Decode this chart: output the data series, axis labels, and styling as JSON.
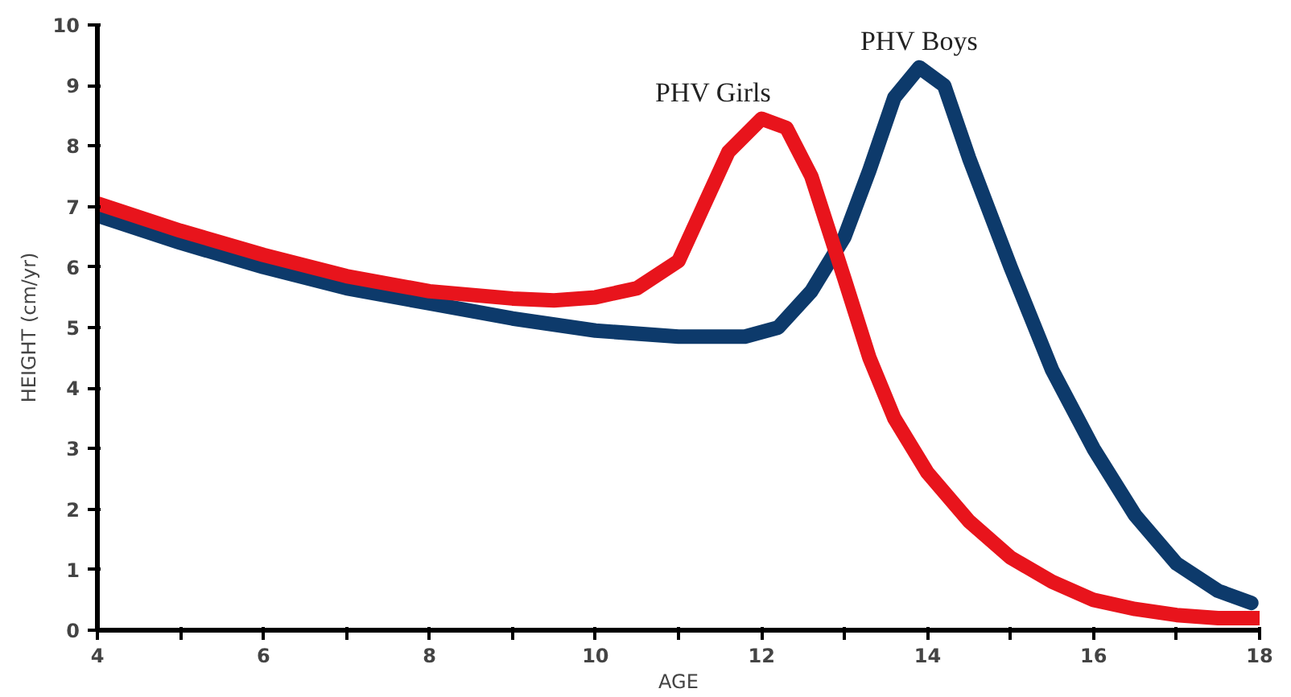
{
  "chart_data": {
    "type": "line",
    "xlabel": "AGE",
    "ylabel": "HEIGHT (cm/yr)",
    "xlim": [
      4,
      18
    ],
    "ylim": [
      0,
      10
    ],
    "xticks": [
      4,
      {
        "value": 5,
        "label": null
      },
      6,
      {
        "value": 7,
        "label": null
      },
      8,
      {
        "value": 9,
        "label": null
      },
      10,
      {
        "value": 11,
        "label": null
      },
      12,
      {
        "value": 13,
        "label": null
      },
      14,
      {
        "value": 15,
        "label": null
      },
      16,
      {
        "value": 17,
        "label": null
      },
      18
    ],
    "yticks": [
      0,
      1,
      2,
      3,
      4,
      5,
      6,
      7,
      8,
      9,
      10
    ],
    "grid": false,
    "marker": "none",
    "line_style": "solid",
    "series": [
      {
        "name": "PHV Boys",
        "color": "#0d3a6b",
        "x": [
          4,
          5,
          6,
          7,
          8,
          9,
          10,
          11,
          11.8,
          12.2,
          12.6,
          13,
          13.3,
          13.6,
          13.9,
          14.2,
          14.5,
          15,
          15.5,
          16,
          16.5,
          17,
          17.5,
          17.9
        ],
        "values": [
          6.85,
          6.4,
          6.0,
          5.65,
          5.4,
          5.15,
          4.95,
          4.85,
          4.85,
          5.0,
          5.6,
          6.5,
          7.6,
          8.8,
          9.3,
          9.0,
          7.8,
          6.0,
          4.3,
          3.0,
          1.9,
          1.1,
          0.65,
          0.45
        ]
      },
      {
        "name": "PHV Girls",
        "color": "#e8141c",
        "x": [
          4,
          5,
          6,
          7,
          8,
          9,
          9.5,
          10,
          10.5,
          11,
          11.3,
          11.6,
          12,
          12.3,
          12.6,
          13,
          13.3,
          13.6,
          14,
          14.5,
          15,
          15.5,
          16,
          16.5,
          17,
          17.5,
          18
        ],
        "values": [
          7.05,
          6.6,
          6.2,
          5.85,
          5.6,
          5.48,
          5.45,
          5.5,
          5.65,
          6.1,
          7.0,
          7.9,
          8.45,
          8.3,
          7.5,
          5.8,
          4.5,
          3.5,
          2.6,
          1.8,
          1.2,
          0.8,
          0.5,
          0.35,
          0.25,
          0.2,
          0.2
        ]
      }
    ]
  }
}
